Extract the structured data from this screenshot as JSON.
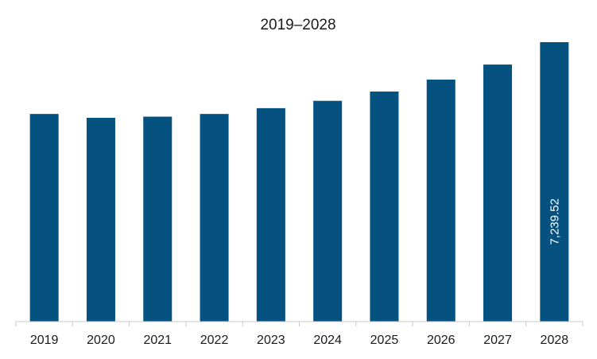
{
  "chart_data": {
    "type": "bar",
    "title": "2019–2028",
    "xlabel": "",
    "ylabel": "",
    "categories": [
      "2019",
      "2020",
      "2021",
      "2022",
      "2023",
      "2024",
      "2025",
      "2026",
      "2027",
      "2028"
    ],
    "values": [
      5380,
      5280,
      5310,
      5380,
      5530,
      5720,
      5960,
      6270,
      6660,
      7239.52
    ],
    "ylim": [
      0,
      7239.52
    ],
    "data_labels": [
      {
        "category": "2028",
        "text": "7,239.52"
      }
    ],
    "grid": false,
    "legend": "none",
    "colors": {
      "bar": "#05517F",
      "axis": "#c8c8c8",
      "tick_text": "#1a1a1a",
      "data_label_text": "#ffffff"
    }
  }
}
